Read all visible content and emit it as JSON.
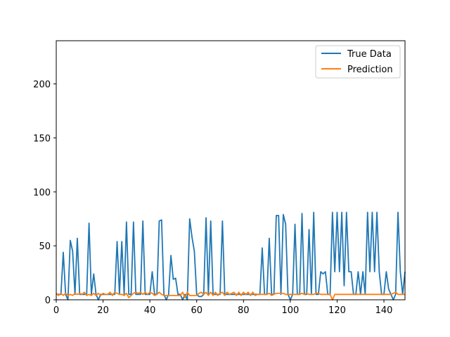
{
  "chart_data": {
    "type": "line",
    "title": "",
    "xlabel": "",
    "ylabel": "",
    "xlim": [
      0,
      149
    ],
    "ylim": [
      0,
      240
    ],
    "xticks": [
      0,
      20,
      40,
      60,
      80,
      100,
      120,
      140
    ],
    "yticks": [
      0,
      50,
      100,
      150,
      200
    ],
    "grid": false,
    "legend_position": "top-right",
    "series": [
      {
        "name": "True Data",
        "color": "#1f77b4",
        "y": [
          5,
          5,
          5,
          44,
          5,
          0,
          55,
          45,
          5,
          57,
          5,
          5,
          5,
          5,
          71,
          5,
          24,
          5,
          0,
          5,
          5,
          5,
          5,
          5,
          5,
          5,
          54,
          5,
          54,
          5,
          72,
          5,
          5,
          72,
          5,
          5,
          5,
          73,
          5,
          5,
          5,
          26,
          5,
          5,
          73,
          74,
          5,
          0,
          5,
          41,
          19,
          20,
          5,
          5,
          0,
          5,
          0,
          75,
          58,
          45,
          5,
          3,
          3,
          5,
          76,
          5,
          73,
          5,
          5,
          5,
          5,
          73,
          5,
          5,
          5,
          5,
          5,
          5,
          5,
          5,
          5,
          5,
          5,
          5,
          5,
          5,
          5,
          5,
          48,
          5,
          5,
          57,
          5,
          5,
          78,
          78,
          5,
          79,
          70,
          5,
          0,
          5,
          70,
          5,
          5,
          80,
          5,
          5,
          65,
          5,
          81,
          5,
          5,
          26,
          24,
          26,
          5,
          5,
          81,
          26,
          81,
          26,
          81,
          13,
          81,
          26,
          26,
          5,
          5,
          26,
          5,
          26,
          5,
          81,
          26,
          81,
          26,
          81,
          26,
          5,
          5,
          26,
          10,
          5,
          0,
          5,
          81,
          26,
          5,
          26
        ]
      },
      {
        "name": "Prediction",
        "color": "#ff7f0e",
        "y": [
          6,
          4,
          6,
          4,
          6,
          4,
          5,
          4,
          6,
          5,
          6,
          5,
          7,
          4,
          5,
          4,
          6,
          4,
          6,
          4,
          6,
          5,
          5,
          7,
          4,
          7,
          6,
          5,
          5,
          4,
          6,
          2,
          4,
          6,
          7,
          6,
          7,
          5,
          7,
          5,
          7,
          6,
          4,
          5,
          7,
          5,
          4,
          4,
          4,
          4,
          4,
          4,
          4,
          4,
          7,
          2,
          7,
          4,
          4,
          4,
          4,
          6,
          7,
          5,
          7,
          4,
          7,
          4,
          7,
          4,
          6,
          7,
          4,
          7,
          5,
          6,
          7,
          4,
          7,
          4,
          7,
          5,
          7,
          4,
          7,
          4,
          5,
          5,
          5,
          5,
          5,
          6,
          4,
          5,
          6,
          6,
          6,
          6,
          5,
          5,
          5,
          5,
          5,
          5,
          5,
          6,
          5,
          6,
          5,
          5,
          5,
          6,
          6,
          5,
          5,
          5,
          5,
          5,
          0,
          5,
          5,
          5,
          5,
          5,
          5,
          5,
          5,
          5,
          5,
          5,
          5,
          5,
          5,
          5,
          5,
          5,
          5,
          5,
          5,
          5,
          5,
          5,
          5,
          5,
          6,
          7,
          5,
          5,
          5,
          5
        ]
      }
    ]
  }
}
